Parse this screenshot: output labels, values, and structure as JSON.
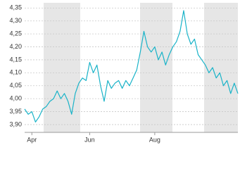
{
  "chart_data": {
    "type": "line",
    "categories": [
      null,
      null,
      "Apr",
      null,
      null,
      null,
      null,
      null,
      null,
      null,
      null,
      null,
      null,
      null,
      null,
      null,
      null,
      null,
      "Jun",
      null,
      null,
      null,
      null,
      null,
      null,
      null,
      null,
      null,
      null,
      null,
      null,
      null,
      null,
      null,
      null,
      null,
      "Aug",
      null,
      null,
      null,
      null,
      null,
      null,
      null,
      null,
      null,
      null,
      null,
      null,
      null,
      null,
      null,
      null,
      null,
      null,
      null,
      null,
      null,
      null,
      null
    ],
    "series": [
      {
        "color": "#19b3c8",
        "values": [
          3.96,
          3.94,
          3.95,
          3.91,
          3.93,
          3.96,
          3.97,
          3.99,
          4.0,
          4.03,
          4.0,
          4.02,
          3.99,
          3.94,
          4.02,
          4.06,
          4.08,
          4.07,
          4.14,
          4.1,
          4.13,
          4.05,
          3.99,
          4.07,
          4.04,
          4.06,
          4.07,
          4.04,
          4.07,
          4.05,
          4.08,
          4.11,
          4.18,
          4.26,
          4.2,
          4.18,
          4.2,
          4.15,
          4.18,
          4.13,
          4.17,
          4.2,
          4.22,
          4.26,
          4.34,
          4.25,
          4.21,
          4.23,
          4.17,
          4.15,
          4.13,
          4.1,
          4.12,
          4.08,
          4.1,
          4.05,
          4.07,
          4.02,
          4.06,
          4.02
        ]
      }
    ],
    "ylim": [
      3.87,
      4.37
    ],
    "yticks": [
      {
        "value": 3.9,
        "label": "3,90"
      },
      {
        "value": 3.95,
        "label": "3,95"
      },
      {
        "value": 4.0,
        "label": "4,00"
      },
      {
        "value": 4.05,
        "label": "4,05"
      },
      {
        "value": 4.1,
        "label": "4,10"
      },
      {
        "value": 4.15,
        "label": "4,15"
      },
      {
        "value": 4.2,
        "label": "4,20"
      },
      {
        "value": 4.25,
        "label": "4,25"
      },
      {
        "value": 4.3,
        "label": "4,30"
      },
      {
        "value": 4.35,
        "label": "4,35"
      }
    ],
    "grid": true
  }
}
